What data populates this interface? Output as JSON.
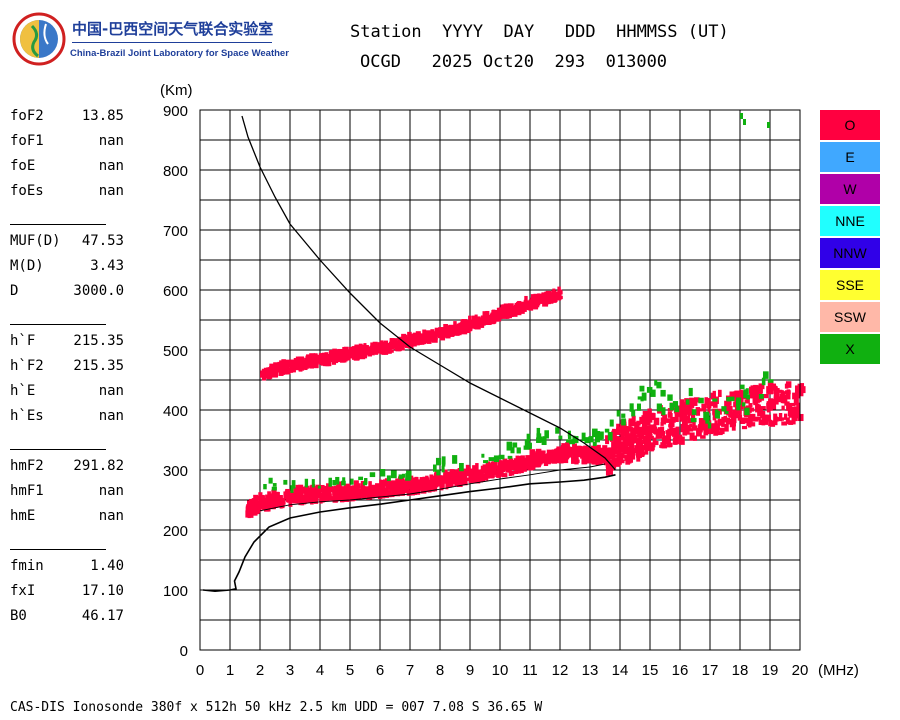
{
  "logo": {
    "cn": "中国-巴西空间天气联合实验室",
    "en": "China-Brazil Joint Laboratory for Space Weather"
  },
  "header": {
    "line1": "Station  YYYY  DAY   DDD  HHMMSS (UT)",
    "line2": "OCGD   2025 Oct20  293  013000"
  },
  "params": [
    {
      "name": "foF2",
      "value": "13.85"
    },
    {
      "name": "foF1",
      "value": "nan"
    },
    {
      "name": "foE",
      "value": "nan"
    },
    {
      "name": "foEs",
      "value": "nan"
    },
    {
      "sep": true
    },
    {
      "name": "MUF(D)",
      "value": "47.53"
    },
    {
      "name": "M(D)",
      "value": "3.43"
    },
    {
      "name": "D",
      "value": "3000.0"
    },
    {
      "sep": true
    },
    {
      "name": "h`F",
      "value": "215.35"
    },
    {
      "name": "h`F2",
      "value": "215.35"
    },
    {
      "name": "h`E",
      "value": "nan"
    },
    {
      "name": "h`Es",
      "value": "nan"
    },
    {
      "sep": true
    },
    {
      "name": "hmF2",
      "value": "291.82"
    },
    {
      "name": "hmF1",
      "value": "nan"
    },
    {
      "name": "hmE",
      "value": "nan"
    },
    {
      "sep": true
    },
    {
      "name": "fmin",
      "value": "1.40"
    },
    {
      "name": "fxI",
      "value": "17.10"
    },
    {
      "name": "B0",
      "value": "46.17"
    }
  ],
  "legend": [
    {
      "label": "O",
      "color": "#ff0040"
    },
    {
      "label": "E",
      "color": "#40a8ff"
    },
    {
      "label": "W",
      "color": "#b000a8"
    },
    {
      "label": "NNE",
      "color": "#20ffff"
    },
    {
      "label": "NNW",
      "color": "#3000e8"
    },
    {
      "label": "SSE",
      "color": "#ffff30"
    },
    {
      "label": "SSW",
      "color": "#ffb8a8"
    },
    {
      "label": "X",
      "color": "#10b010"
    }
  ],
  "footer": "CAS-DIS Ionosonde 380f x 512h 50 kHz 2.5 km UDD = 007 7.08 S 36.65 W",
  "chart_data": {
    "type": "scatter",
    "xlabel": "(MHz)",
    "ylabel": "(Km)",
    "xlim": [
      0,
      20
    ],
    "ylim": [
      0,
      900
    ],
    "xticks": [
      0,
      1,
      2,
      3,
      4,
      5,
      6,
      7,
      8,
      9,
      10,
      11,
      12,
      13,
      14,
      15,
      16,
      17,
      18,
      19,
      20
    ],
    "yticks": [
      0,
      100,
      200,
      300,
      400,
      500,
      600,
      700,
      800,
      900
    ],
    "grid": true,
    "traces": [
      {
        "name": "O",
        "color": "#ff0040",
        "x": [
          1.5,
          2.0,
          3.0,
          4.0,
          5.0,
          6.0,
          7.0,
          8.0,
          9.0,
          10.0,
          11.0,
          12.0,
          13.0,
          13.5,
          14.0,
          14.5,
          15.0,
          16.0,
          17.0,
          18.0,
          19.0,
          20.0
        ],
        "y": [
          228,
          240,
          250,
          255,
          258,
          263,
          268,
          277,
          287,
          295,
          310,
          322,
          318,
          318,
          340,
          345,
          360,
          375,
          385,
          400,
          405,
          410
        ]
      },
      {
        "name": "O second hop",
        "color": "#ff0040",
        "x": [
          2.0,
          3.0,
          4.0,
          5.0,
          6.0,
          7.0,
          8.0,
          9.0,
          10.0,
          11.0,
          12.0
        ],
        "y": [
          455,
          468,
          478,
          488,
          497,
          510,
          522,
          537,
          555,
          572,
          590
        ]
      },
      {
        "name": "X",
        "color": "#10b010",
        "x": [
          2.0,
          4.0,
          6.0,
          8.0,
          10.0,
          11.0,
          12.0,
          13.0,
          14.0,
          15.0,
          16.0,
          17.0,
          18.0,
          19.0
        ],
        "y": [
          268,
          272,
          282,
          300,
          320,
          345,
          355,
          345,
          380,
          420,
          400,
          395,
          410,
          430
        ]
      }
    ],
    "profile": {
      "x": [
        0.1,
        0.5,
        1.0,
        1.2,
        1.15,
        1.3,
        1.5,
        1.8,
        2.3,
        3.0,
        4.0,
        5.0,
        6.0,
        7.0,
        8.0,
        9.0,
        10.0,
        11.0,
        12.0,
        12.8,
        13.5,
        13.85
      ],
      "y": [
        100,
        98,
        100,
        102,
        115,
        130,
        155,
        180,
        205,
        220,
        230,
        237,
        243,
        250,
        257,
        264,
        270,
        277,
        280,
        283,
        288,
        292
      ]
    },
    "muf_curve": {
      "x": [
        1.4,
        1.6,
        2.0,
        2.5,
        3.0,
        3.5,
        4.0,
        5.0,
        6.0,
        7.0,
        8.0,
        9.0,
        10.0,
        11.0,
        12.0,
        12.8,
        13.5,
        13.85
      ],
      "y": [
        890,
        855,
        805,
        755,
        710,
        680,
        650,
        595,
        545,
        505,
        475,
        445,
        420,
        395,
        370,
        345,
        320,
        300
      ]
    },
    "virtual_trace": {
      "x": [
        2.0,
        3.0,
        4.0,
        5.0,
        6.0,
        7.0,
        8.0,
        9.0,
        10.0,
        11.0,
        12.0,
        13.0,
        13.5
      ],
      "y": [
        232,
        242,
        247,
        250,
        255,
        260,
        268,
        277,
        285,
        292,
        300,
        305,
        310
      ]
    }
  }
}
